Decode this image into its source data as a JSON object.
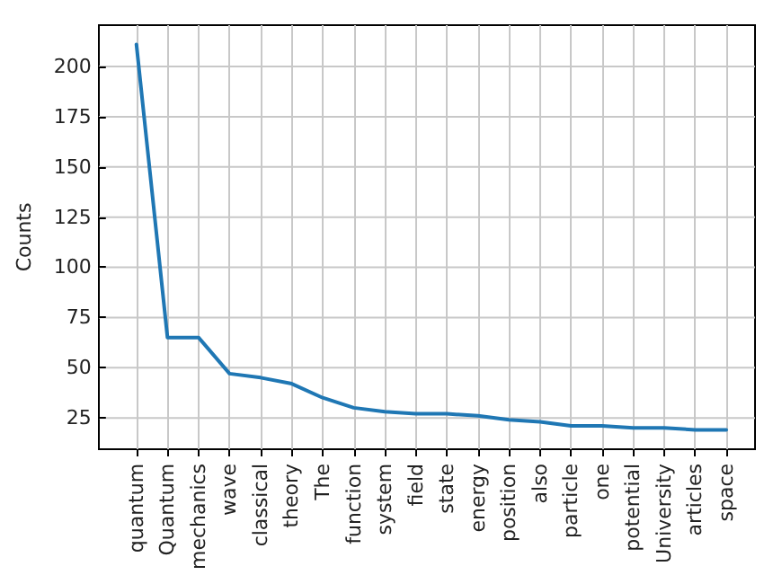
{
  "chart_data": {
    "type": "line",
    "ylabel": "Counts",
    "categories": [
      "quantum",
      "Quantum",
      "mechanics",
      "wave",
      "classical",
      "theory",
      "The",
      "function",
      "system",
      "field",
      "state",
      "energy",
      "position",
      "also",
      "particle",
      "one",
      "potential",
      "University",
      "articles",
      "space"
    ],
    "series": [
      {
        "color": "#1f77b4",
        "values": [
          211,
          65,
          65,
          47,
          45,
          42,
          35,
          30,
          28,
          27,
          27,
          26,
          24,
          23,
          21,
          21,
          20,
          20,
          19,
          19
        ]
      }
    ],
    "ylim": [
      9.4,
      220.6
    ],
    "yticks": [
      25,
      50,
      75,
      100,
      125,
      150,
      175,
      200
    ],
    "grid": true,
    "marker": "none",
    "line_style": "solid"
  }
}
